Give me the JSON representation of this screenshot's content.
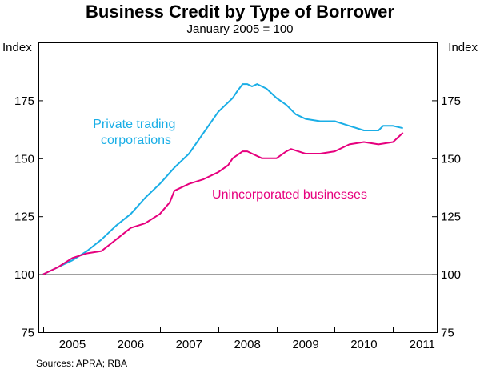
{
  "chart_data": {
    "type": "line",
    "title": "Business Credit by Type of Borrower",
    "subtitle": "January 2005 = 100",
    "y_unit_left": "Index",
    "y_unit_right": "Index",
    "ylim": [
      75,
      200
    ],
    "yticks": [
      75,
      100,
      125,
      150,
      175
    ],
    "xlim": [
      2004.917,
      2011.75
    ],
    "xticks": [
      "2005",
      "2006",
      "2007",
      "2008",
      "2009",
      "2010",
      "2011"
    ],
    "grid": false,
    "source": "Sources: APRA; RBA",
    "series": [
      {
        "name": "Private trading corporations",
        "label_lines": [
          "Private trading",
          "corporations"
        ],
        "color": "#1aaee6",
        "x": [
          2005.0,
          2005.25,
          2005.5,
          2005.75,
          2006.0,
          2006.25,
          2006.5,
          2006.75,
          2007.0,
          2007.25,
          2007.5,
          2007.75,
          2008.0,
          2008.25,
          2008.33,
          2008.42,
          2008.5,
          2008.58,
          2008.67,
          2008.75,
          2008.83,
          2009.0,
          2009.17,
          2009.33,
          2009.5,
          2009.75,
          2010.0,
          2010.25,
          2010.5,
          2010.75,
          2010.83,
          2011.0,
          2011.17
        ],
        "y": [
          100,
          103,
          106,
          110,
          115,
          121,
          126,
          133,
          139,
          146,
          152,
          161,
          170,
          176,
          179,
          182,
          182,
          181,
          182,
          181,
          180,
          176,
          173,
          169,
          167,
          166,
          166,
          164,
          162,
          162,
          164,
          164,
          163
        ]
      },
      {
        "name": "Unincorporated businesses",
        "label_lines": [
          "Unincorporated businesses"
        ],
        "color": "#e6007e",
        "x": [
          2005.0,
          2005.25,
          2005.5,
          2005.75,
          2006.0,
          2006.25,
          2006.5,
          2006.75,
          2007.0,
          2007.17,
          2007.25,
          2007.5,
          2007.75,
          2008.0,
          2008.17,
          2008.25,
          2008.42,
          2008.5,
          2008.75,
          2009.0,
          2009.17,
          2009.25,
          2009.5,
          2009.75,
          2010.0,
          2010.25,
          2010.5,
          2010.75,
          2011.0,
          2011.17
        ],
        "y": [
          100,
          103,
          107,
          109,
          110,
          115,
          120,
          122,
          126,
          131,
          136,
          139,
          141,
          144,
          147,
          150,
          153,
          153,
          150,
          150,
          153,
          154,
          152,
          152,
          153,
          156,
          157,
          156,
          157,
          161
        ]
      }
    ]
  }
}
